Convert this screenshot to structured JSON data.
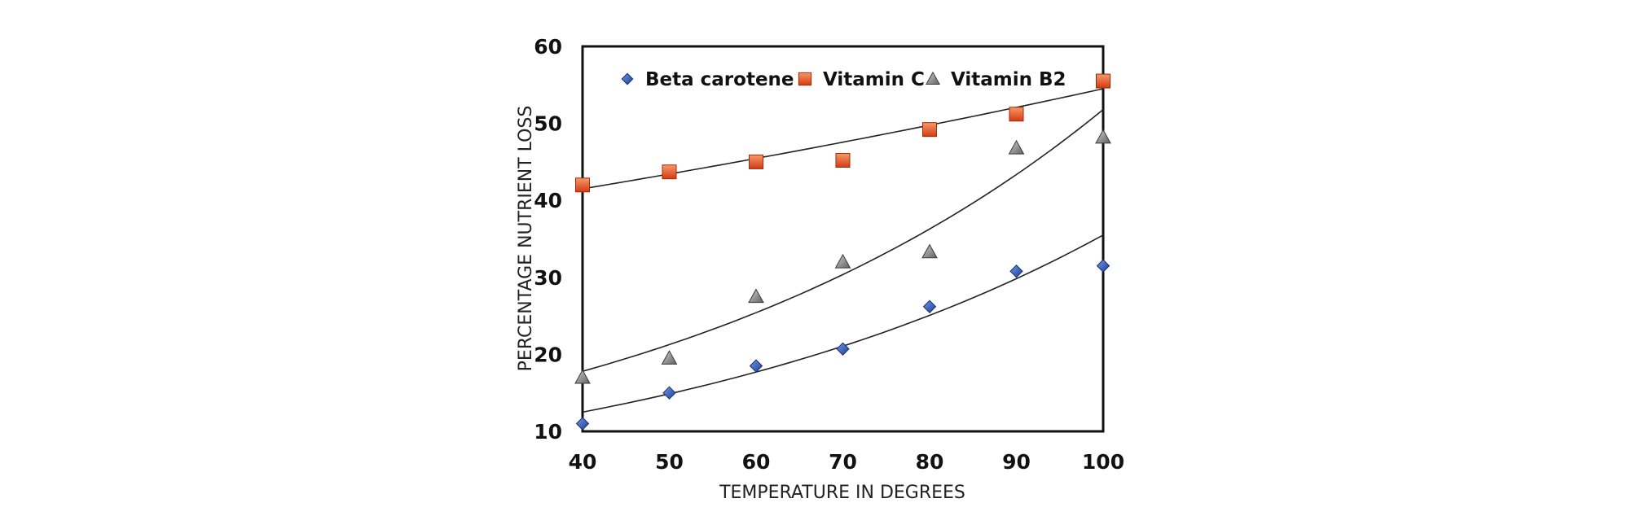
{
  "chart_data": {
    "type": "scatter",
    "title": "",
    "xlabel": "TEMPERATURE IN DEGREES",
    "ylabel": "PERCENTAGE NUTRIENT LOSS",
    "xlim": [
      40,
      100
    ],
    "ylim": [
      10,
      60
    ],
    "xticks": [
      40,
      50,
      60,
      70,
      80,
      90,
      100
    ],
    "yticks": [
      10,
      20,
      30,
      40,
      50,
      60
    ],
    "grid": false,
    "legend_position": "top",
    "series": [
      {
        "name": "Beta carotene",
        "marker": "diamond",
        "color": "#2f56b8",
        "x": [
          40,
          50,
          60,
          70,
          80,
          90,
          100
        ],
        "y": [
          11,
          15,
          18.5,
          20.7,
          26.2,
          30.8,
          31.5
        ],
        "trendline": {
          "type": "exponential",
          "x": [
            40,
            100
          ],
          "y": [
            12.5,
            35.5
          ]
        }
      },
      {
        "name": "Vitamin C",
        "marker": "square",
        "color": "#e8521c",
        "x": [
          40,
          50,
          60,
          70,
          80,
          90,
          100
        ],
        "y": [
          42,
          43.7,
          45,
          45.2,
          49.2,
          51.2,
          55.5
        ],
        "trendline": {
          "type": "exponential",
          "x": [
            40,
            100
          ],
          "y": [
            41.5,
            54.5
          ]
        }
      },
      {
        "name": "Vitamin B2",
        "marker": "triangle",
        "color": "#8c8c8c",
        "x": [
          40,
          50,
          60,
          70,
          80,
          90,
          100
        ],
        "y": [
          17,
          19.5,
          27.5,
          32,
          33.3,
          46.8,
          48.2
        ],
        "trendline": {
          "type": "exponential",
          "x": [
            40,
            100
          ],
          "y": [
            17.8,
            51.8
          ]
        }
      }
    ]
  }
}
